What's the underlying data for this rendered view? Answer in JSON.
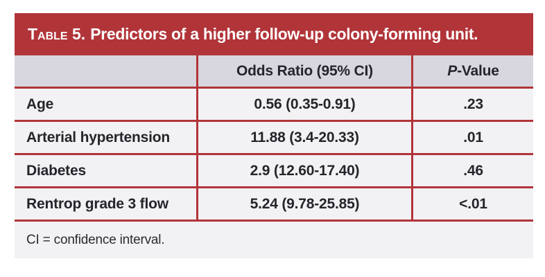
{
  "colors": {
    "brand_red": "#b13439",
    "header_row_bg": "#d8d6de",
    "row_bg": "#f2f2f4",
    "text_dark": "#26242b"
  },
  "table": {
    "title_smallcaps": "Table 5.",
    "title_rest": "Predictors of a higher follow-up colony-forming unit.",
    "columns": {
      "label_header": "",
      "odds_ratio_header": "Odds Ratio (95% CI)",
      "p_value_header_italic": "P",
      "p_value_header_rest": "-Value"
    },
    "rows": [
      {
        "label": "Age",
        "odds_ratio": "0.56 (0.35-0.91)",
        "p_value": ".23"
      },
      {
        "label": "Arterial hypertension",
        "odds_ratio": "11.88 (3.4-20.33)",
        "p_value": ".01"
      },
      {
        "label": "Diabetes",
        "odds_ratio": "2.9 (12.60-17.40)",
        "p_value": ".46"
      },
      {
        "label": "Rentrop grade 3 flow",
        "odds_ratio": "5.24 (9.78-25.85)",
        "p_value": "<.01"
      }
    ],
    "footnote": "CI = confidence interval."
  }
}
